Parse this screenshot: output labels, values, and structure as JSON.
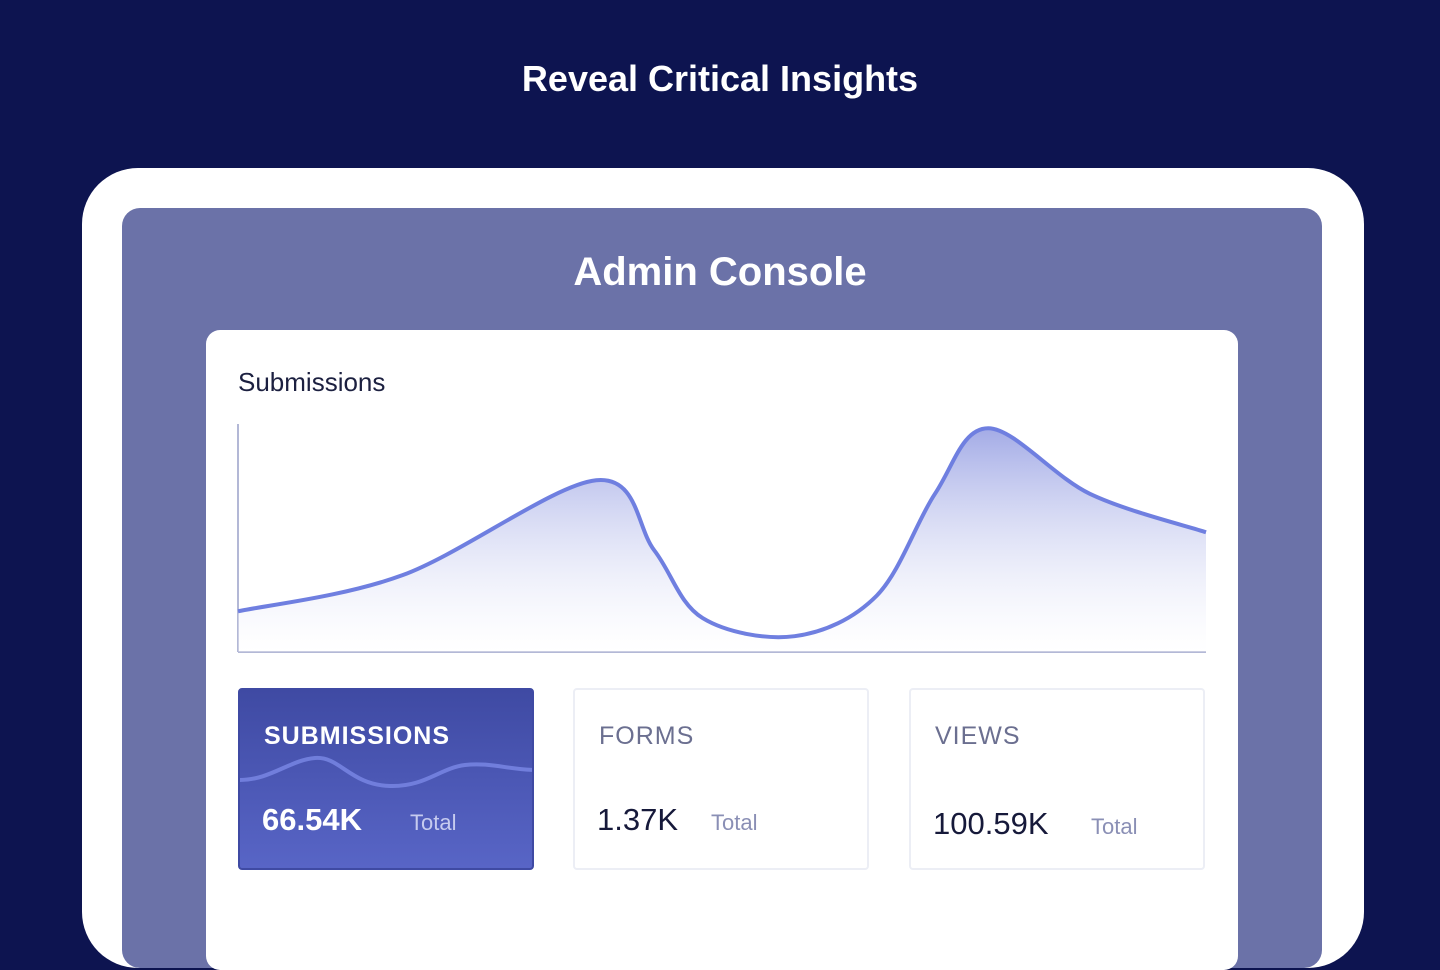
{
  "headline": "Reveal Critical Insights",
  "console_title": "Admin Console",
  "chart_data": {
    "type": "area",
    "title": "Submissions",
    "xlabel": "",
    "ylabel": "",
    "x": [
      0,
      17,
      37,
      43,
      48,
      57.5,
      66,
      72,
      77.5,
      88,
      100
    ],
    "values": [
      18,
      34,
      76,
      45,
      15,
      7,
      25,
      70,
      99,
      70,
      53
    ],
    "ylim": [
      0,
      100
    ],
    "grid": false,
    "line_color": "#6f7fe0"
  },
  "cards": [
    {
      "label": "SUBMISSIONS",
      "value": "66.54K",
      "unit": "Total"
    },
    {
      "label": "FORMS",
      "value": "1.37K",
      "unit": "Total"
    },
    {
      "label": "VIEWS",
      "value": "100.59K",
      "unit": "Total"
    }
  ]
}
